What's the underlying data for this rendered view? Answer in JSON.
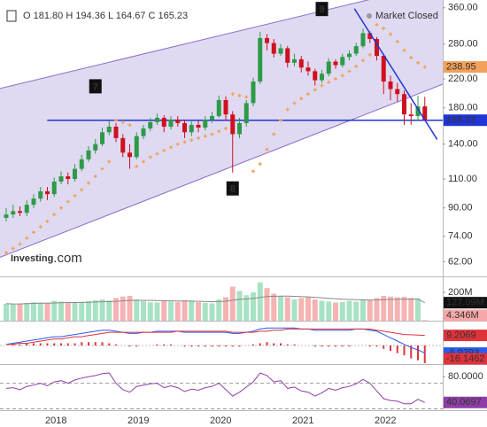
{
  "chart_data": [
    {
      "type": "candlestick",
      "legend": "O 181.80 H 194.36 L 164.67 C 165.23",
      "status": "Market Closed",
      "logo": {
        "main": "Investing",
        "suffix": ".com"
      },
      "categories": [
        null,
        null,
        null,
        null,
        null,
        null,
        null,
        "2018",
        null,
        null,
        null,
        null,
        null,
        null,
        null,
        null,
        null,
        null,
        null,
        "2019",
        null,
        null,
        null,
        null,
        null,
        null,
        null,
        null,
        null,
        null,
        null,
        "2020",
        null,
        null,
        null,
        null,
        null,
        null,
        null,
        null,
        null,
        null,
        null,
        "2021",
        null,
        null,
        null,
        null,
        null,
        null,
        null,
        null,
        null,
        null,
        null,
        "2022",
        null,
        null,
        null,
        null,
        null,
        null
      ],
      "open": [
        84,
        86,
        88,
        87,
        92,
        96,
        101,
        99,
        108,
        112,
        110,
        118,
        126,
        134,
        140,
        152,
        158,
        146,
        132,
        128,
        148,
        156,
        163,
        168,
        158,
        166,
        162,
        152,
        160,
        157,
        166,
        170,
        190,
        172,
        150,
        162,
        186,
        216,
        292,
        282,
        262,
        272,
        246,
        252,
        238,
        232,
        218,
        228,
        248,
        242,
        256,
        262,
        276,
        302,
        290,
        258,
        216,
        205,
        198,
        172,
        170,
        181.8
      ],
      "high": [
        90,
        92,
        91,
        95,
        99,
        104,
        104,
        111,
        116,
        115,
        122,
        130,
        138,
        145,
        157,
        165,
        162,
        150,
        140,
        152,
        160,
        168,
        173,
        171,
        170,
        170,
        166,
        164,
        165,
        170,
        175,
        196,
        195,
        176,
        168,
        190,
        222,
        305,
        300,
        290,
        280,
        276,
        262,
        258,
        248,
        236,
        234,
        254,
        252,
        262,
        268,
        282,
        312,
        306,
        294,
        262,
        225,
        214,
        203,
        186,
        196,
        194.36
      ],
      "low": [
        82,
        84,
        85,
        85,
        90,
        94,
        95,
        97,
        106,
        106,
        108,
        116,
        124,
        131,
        138,
        149,
        142,
        128,
        118,
        126,
        145,
        153,
        160,
        152,
        155,
        158,
        146,
        148,
        152,
        154,
        162,
        168,
        165,
        115,
        146,
        158,
        182,
        212,
        268,
        255,
        258,
        238,
        240,
        230,
        225,
        210,
        214,
        224,
        236,
        238,
        250,
        258,
        272,
        282,
        250,
        198,
        190,
        188,
        160,
        160,
        165,
        164.67
      ],
      "close": [
        86,
        88,
        87,
        92,
        96,
        101,
        99,
        108,
        112,
        110,
        118,
        126,
        134,
        140,
        152,
        158,
        146,
        132,
        128,
        148,
        156,
        163,
        168,
        158,
        166,
        162,
        152,
        160,
        157,
        166,
        170,
        190,
        172,
        150,
        162,
        186,
        216,
        292,
        282,
        262,
        272,
        246,
        252,
        238,
        232,
        218,
        228,
        248,
        242,
        256,
        262,
        276,
        302,
        290,
        258,
        216,
        205,
        198,
        172,
        170,
        181.8,
        165.23
      ],
      "up_color": "#2e9a48",
      "down_color": "#d0101e",
      "ylim": [
        56,
        380
      ],
      "log_scale": true,
      "yticks": [
        {
          "value": 62,
          "label": "62.00"
        },
        {
          "value": 74,
          "label": "74.00"
        },
        {
          "value": 90,
          "label": "90.00"
        },
        {
          "value": 110,
          "label": "110.00"
        },
        {
          "value": 140,
          "label": "140.00"
        },
        {
          "value": 180,
          "label": "180.00"
        },
        {
          "value": 220,
          "label": "220.00"
        },
        {
          "value": 280,
          "label": "280.00"
        },
        {
          "value": 360,
          "label": "360.00"
        }
      ],
      "sar": {
        "color": "#f2a15a",
        "values": [
          66,
          68,
          70,
          73,
          76,
          79,
          82,
          86,
          90,
          94,
          98,
          102,
          107,
          112,
          118,
          124,
          165,
          163,
          160,
          120,
          124,
          128,
          131,
          134,
          137,
          140,
          142,
          144,
          146,
          148,
          150,
          153,
          156,
          198,
          196,
          194,
          116,
          122,
          135,
          150,
          165,
          178,
          186,
          192,
          198,
          204,
          210,
          215,
          220,
          225,
          232,
          240,
          250,
          260,
          320,
          312,
          300,
          285,
          268,
          255,
          246,
          238.95
        ]
      },
      "channel": {
        "color": "#8e6cc9",
        "fill": "#d9d4ee",
        "upper": {
          "x": [
            0,
            61
          ],
          "y": [
            208,
            418
          ]
        },
        "lower": {
          "x": [
            0,
            61
          ],
          "y": [
            65,
            202
          ]
        }
      },
      "trendline": {
        "color": "#1f35d6",
        "x": [
          51,
          61
        ],
        "y": [
          351,
          165.6
        ]
      },
      "hline": {
        "color": "#1f35d6",
        "value": 165.23,
        "x": 7
      },
      "annotations": [
        {
          "text": "7",
          "x": 13,
          "y": 209
        },
        {
          "text": "8",
          "x": 33,
          "y": 103
        },
        {
          "text": "9",
          "x": 46,
          "y": 357
        }
      ]
    },
    {
      "type": "bar",
      "values": [
        120,
        115,
        118,
        125,
        130,
        128,
        122,
        140,
        135,
        128,
        125,
        132,
        138,
        145,
        150,
        142,
        160,
        170,
        175,
        150,
        138,
        130,
        128,
        140,
        135,
        132,
        145,
        138,
        130,
        125,
        122,
        150,
        165,
        240,
        210,
        180,
        200,
        270,
        230,
        190,
        175,
        165,
        150,
        160,
        165,
        150,
        140,
        135,
        128,
        132,
        140,
        135,
        150,
        145,
        160,
        175,
        170,
        165,
        168,
        160,
        158,
        4.346
      ],
      "last_value_label": "4.346M",
      "up_color": "#a8e2c4",
      "down_color": "#f6b3b3",
      "ma": {
        "color": "#8a8a8a",
        "values": [
          120,
          118,
          118,
          120,
          122,
          123,
          123,
          125,
          127,
          128,
          128,
          129,
          130,
          132,
          134,
          135,
          137,
          140,
          143,
          144,
          144,
          143,
          142,
          141,
          140,
          139,
          139,
          138,
          137,
          135,
          134,
          135,
          137,
          145,
          150,
          153,
          157,
          165,
          170,
          172,
          173,
          173,
          172,
          170,
          168,
          165,
          162,
          158,
          155,
          152,
          150,
          148,
          147,
          146,
          147,
          149,
          150,
          151,
          152,
          153,
          152,
          127.09
        ],
        "last_value_label": "127.09M"
      },
      "ylim": [
        0,
        300
      ],
      "yticks": [
        {
          "value": 200,
          "label": "200M"
        }
      ]
    },
    {
      "type": "line",
      "series": [
        {
          "color": "#2a5bf0",
          "values": [
            1,
            2,
            3,
            4,
            5,
            6,
            7,
            8,
            8,
            9,
            10,
            11,
            12,
            13,
            14,
            14,
            13,
            12,
            11,
            11,
            12,
            12,
            13,
            13,
            13,
            13,
            12,
            12,
            12,
            12,
            12,
            12,
            12,
            11,
            11,
            12,
            13,
            15,
            16,
            16,
            16,
            16,
            16,
            15,
            15,
            14,
            14,
            14,
            14,
            14,
            14,
            15,
            15,
            14,
            13,
            10,
            7,
            4,
            1,
            -2,
            -4,
            -6.9393
          ]
        },
        {
          "color": "#e0323b",
          "values": [
            1,
            1,
            2,
            2,
            3,
            4,
            5,
            6,
            6,
            7,
            8,
            8,
            9,
            10,
            11,
            12,
            12,
            12,
            12,
            12,
            12,
            12,
            12,
            12,
            12,
            13,
            13,
            13,
            13,
            13,
            13,
            13,
            13,
            12,
            12,
            12,
            12,
            13,
            13,
            14,
            14,
            15,
            15,
            15,
            15,
            15,
            15,
            15,
            15,
            15,
            15,
            15,
            15,
            15,
            14,
            13,
            12,
            11,
            10,
            9.8,
            9.5,
            9.2069
          ]
        }
      ],
      "histogram": {
        "color": "#e0323b",
        "values": [
          0,
          1,
          1,
          2,
          2,
          2,
          2,
          2,
          2,
          2,
          2,
          3,
          3,
          3,
          3,
          2,
          1,
          0,
          -1,
          -1,
          0,
          0,
          1,
          1,
          1,
          0,
          -1,
          -1,
          -1,
          -1,
          -1,
          -1,
          -1,
          -1,
          -1,
          0,
          1,
          2,
          3,
          2,
          2,
          1,
          1,
          0,
          0,
          -1,
          -1,
          -1,
          -1,
          -1,
          -1,
          0,
          0,
          -1,
          -1,
          -3,
          -5,
          -7,
          -9,
          -11.8,
          -13.5,
          -16.1462
        ]
      },
      "ylim": [
        -17,
        21
      ],
      "zero_line": true
    },
    {
      "type": "line",
      "series": [
        {
          "color": "#8e3ea6",
          "values": [
            62,
            63,
            60,
            65,
            67,
            70,
            66,
            72,
            74,
            70,
            75,
            78,
            80,
            82,
            85,
            86,
            70,
            60,
            56,
            65,
            67,
            69,
            70,
            63,
            66,
            63,
            57,
            61,
            59,
            63,
            65,
            70,
            60,
            50,
            56,
            64,
            72,
            86,
            82,
            72,
            74,
            62,
            64,
            58,
            56,
            50,
            55,
            62,
            59,
            63,
            65,
            69,
            76,
            70,
            58,
            46,
            43,
            42,
            38,
            38,
            45,
            40.0697
          ]
        }
      ],
      "ylim": [
        28,
        97
      ],
      "yticks": [
        {
          "value": 80,
          "label": "80.0000"
        }
      ],
      "bands": [
        70,
        30
      ]
    }
  ]
}
